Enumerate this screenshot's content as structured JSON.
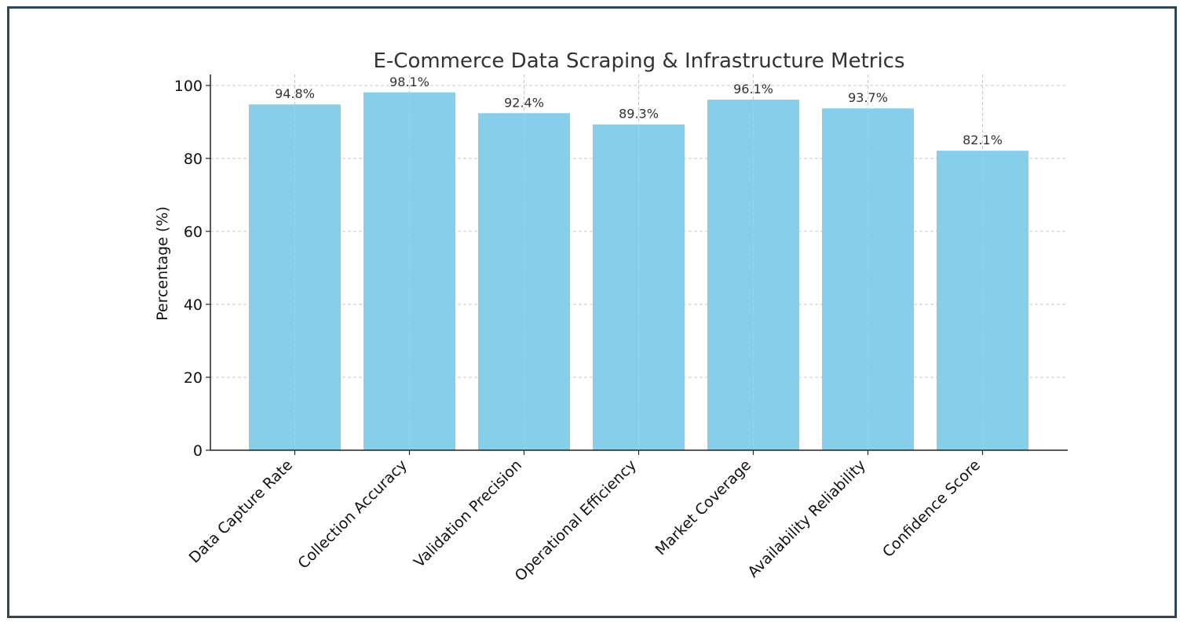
{
  "chart_data": {
    "type": "bar",
    "title": "E-Commerce Data Scraping & Infrastructure Metrics",
    "xlabel": "",
    "ylabel": "Percentage (%)",
    "ylim": [
      0,
      103
    ],
    "yticks": [
      0,
      20,
      40,
      60,
      80,
      100
    ],
    "grid": true,
    "bar_color": "#87ceeb",
    "categories": [
      "Data Capture Rate",
      "Collection Accuracy",
      "Validation Precision",
      "Operational Efficiency",
      "Market Coverage",
      "Availability Reliability",
      "Confidence Score"
    ],
    "values": [
      94.8,
      98.1,
      92.4,
      89.3,
      96.1,
      93.7,
      82.1
    ],
    "value_labels": [
      "94.8%",
      "98.1%",
      "92.4%",
      "89.3%",
      "96.1%",
      "93.7%",
      "82.1%"
    ]
  },
  "frame": {
    "border_color": "#2e4756"
  }
}
